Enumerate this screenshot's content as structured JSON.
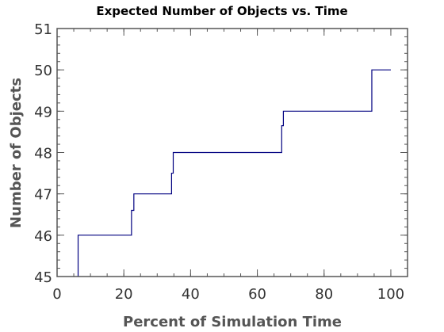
{
  "chart_data": {
    "type": "line",
    "title": "Expected Number of Objects vs. Time",
    "xlabel": "Percent of Simulation Time",
    "ylabel": "Number of Objects",
    "xlim": [
      0,
      105
    ],
    "ylim": [
      45,
      51
    ],
    "x_ticks": [
      0,
      20,
      40,
      60,
      80,
      100
    ],
    "y_ticks": [
      45,
      46,
      47,
      48,
      49,
      50,
      51
    ],
    "x_minor_step": 5,
    "y_minor_step": 0.2,
    "grid": false,
    "step": true,
    "colors": {
      "series": "#000080",
      "frame": "#555555"
    },
    "series": [
      {
        "points": [
          [
            6.3,
            45
          ],
          [
            6.3,
            46
          ],
          [
            22.3,
            46
          ],
          [
            22.3,
            46.6
          ],
          [
            23.0,
            46.6
          ],
          [
            23.0,
            47
          ],
          [
            34.3,
            47
          ],
          [
            34.3,
            47.5
          ],
          [
            34.8,
            47.5
          ],
          [
            34.8,
            48
          ],
          [
            67.3,
            48
          ],
          [
            67.3,
            48.65
          ],
          [
            67.8,
            48.65
          ],
          [
            67.8,
            49
          ],
          [
            94.3,
            49
          ],
          [
            94.3,
            50
          ],
          [
            100,
            50
          ]
        ]
      }
    ]
  }
}
